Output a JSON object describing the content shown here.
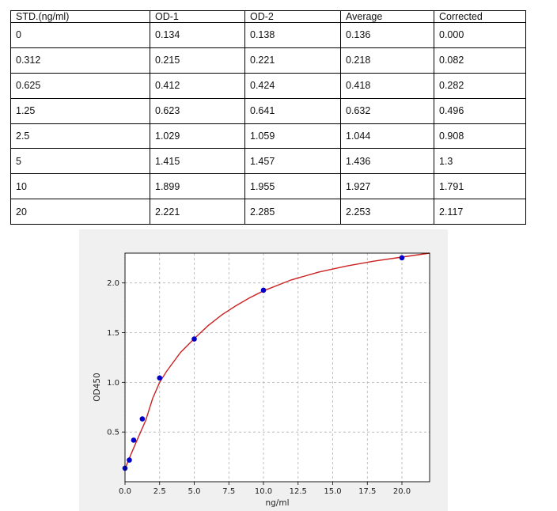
{
  "table": {
    "headers": [
      "STD.(ng/ml)",
      "OD-1",
      "OD-2",
      "Average",
      "Corrected"
    ],
    "rows": [
      [
        "0",
        "0.134",
        "0.138",
        "0.136",
        "0.000"
      ],
      [
        "0.312",
        "0.215",
        "0.221",
        "0.218",
        "0.082"
      ],
      [
        "0.625",
        "0.412",
        "0.424",
        "0.418",
        "0.282"
      ],
      [
        "1.25",
        "0.623",
        "0.641",
        "0.632",
        "0.496"
      ],
      [
        "2.5",
        "1.029",
        "1.059",
        "1.044",
        "0.908"
      ],
      [
        "5",
        "1.415",
        "1.457",
        "1.436",
        "1.3"
      ],
      [
        "10",
        "1.899",
        "1.955",
        "1.927",
        "1.791"
      ],
      [
        "20",
        "2.221",
        "2.285",
        "2.253",
        "2.117"
      ]
    ]
  },
  "chart_data": {
    "type": "scatter",
    "title": "",
    "xlabel": "ng/ml",
    "ylabel": "OD450",
    "xlim": [
      0,
      22
    ],
    "ylim": [
      0,
      2.3
    ],
    "xticks": [
      "0.0",
      "2.5",
      "5.0",
      "7.5",
      "10.0",
      "12.5",
      "15.0",
      "17.5",
      "20.0"
    ],
    "yticks": [
      "0.5",
      "1.0",
      "1.5",
      "2.0"
    ],
    "grid": true,
    "series": [
      {
        "type": "scatter",
        "x": [
          0,
          0.312,
          0.625,
          1.25,
          2.5,
          5,
          10,
          20
        ],
        "y": [
          0.136,
          0.218,
          0.418,
          0.632,
          1.044,
          1.436,
          1.927,
          2.253
        ],
        "color": "#0000cc"
      },
      {
        "type": "line",
        "x": [
          0,
          0.5,
          1,
          1.5,
          2,
          2.5,
          3,
          4,
          5,
          6,
          7,
          8,
          9,
          10,
          12,
          14,
          16,
          18,
          20,
          22
        ],
        "y": [
          0.13,
          0.3,
          0.46,
          0.62,
          0.84,
          1.0,
          1.11,
          1.3,
          1.44,
          1.57,
          1.68,
          1.77,
          1.85,
          1.92,
          2.03,
          2.11,
          2.17,
          2.22,
          2.26,
          2.3
        ],
        "color": "#cc2222"
      }
    ]
  }
}
